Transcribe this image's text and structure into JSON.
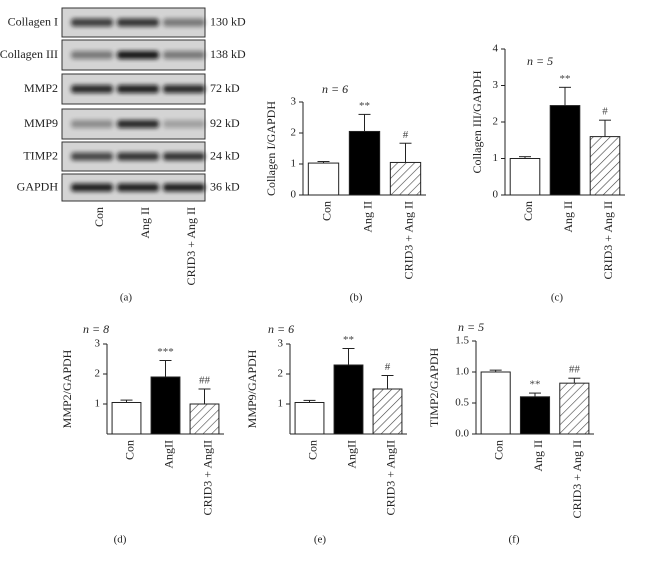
{
  "blot": {
    "panel": "(a)",
    "rows": [
      {
        "label": "Collagen I",
        "size": "130 kD"
      },
      {
        "label": "Collagen III",
        "size": "138 kD"
      },
      {
        "label": "MMP2",
        "size": "72 kD"
      },
      {
        "label": "MMP9",
        "size": "92 kD"
      },
      {
        "label": "TIMP2",
        "size": "24 kD"
      },
      {
        "label": "GAPDH",
        "size": "36 kD"
      }
    ],
    "lanes": [
      "Con",
      "Ang II",
      "CRID3 + Ang II"
    ]
  },
  "chart_data": [
    {
      "type": "bar",
      "panel": "(b)",
      "title": "n = 6",
      "y_label": "Collagen I/GAPDH",
      "categories": [
        "Con",
        "Ang II",
        "CRID3 + Ang II"
      ],
      "values": [
        1.03,
        2.05,
        1.05
      ],
      "errors": [
        0.05,
        0.55,
        0.62
      ],
      "annotations": [
        null,
        "**",
        "#"
      ],
      "colors": [
        "#ffffff",
        "#000000",
        "#ffffff"
      ],
      "hatch": [
        false,
        false,
        true
      ],
      "ylim": [
        0,
        3
      ],
      "yticks": [
        0,
        1,
        2,
        3
      ]
    },
    {
      "type": "bar",
      "panel": "(c)",
      "title": "n = 5",
      "y_label": "Collagen III/GAPDH",
      "categories": [
        "Con",
        "Ang II",
        "CRID3 + Ang II"
      ],
      "values": [
        1.0,
        2.45,
        1.6
      ],
      "errors": [
        0.05,
        0.5,
        0.45
      ],
      "annotations": [
        null,
        "**",
        "#"
      ],
      "colors": [
        "#ffffff",
        "#000000",
        "#ffffff"
      ],
      "hatch": [
        false,
        false,
        true
      ],
      "ylim": [
        0,
        4
      ],
      "yticks": [
        0,
        1,
        2,
        3,
        4
      ]
    },
    {
      "type": "bar",
      "panel": "(d)",
      "title": "n = 8",
      "y_label": "MMP2/GAPDH",
      "categories": [
        "Con",
        "AngII",
        "CRID3 + AngII"
      ],
      "values": [
        1.05,
        1.9,
        1.0
      ],
      "errors": [
        0.08,
        0.55,
        0.5
      ],
      "annotations": [
        null,
        "***",
        "##"
      ],
      "colors": [
        "#ffffff",
        "#000000",
        "#ffffff"
      ],
      "hatch": [
        false,
        false,
        true
      ],
      "ylim": [
        0,
        3
      ],
      "yticks": [
        1,
        2,
        3
      ]
    },
    {
      "type": "bar",
      "panel": "(e)",
      "title": "n = 6",
      "y_label": "MMP9/GAPDH",
      "categories": [
        "Con",
        "AngII",
        "CRID3 + AngII"
      ],
      "values": [
        1.05,
        2.3,
        1.5
      ],
      "errors": [
        0.07,
        0.55,
        0.45
      ],
      "annotations": [
        null,
        "**",
        "#"
      ],
      "colors": [
        "#ffffff",
        "#000000",
        "#ffffff"
      ],
      "hatch": [
        false,
        false,
        true
      ],
      "ylim": [
        0,
        3
      ],
      "yticks": [
        1,
        2,
        3
      ]
    },
    {
      "type": "bar",
      "panel": "(f)",
      "title": "n = 5",
      "y_label": "TIMP2/GAPDH",
      "categories": [
        "Con",
        "Ang II",
        "CRID3 + Ang II"
      ],
      "values": [
        1.0,
        0.6,
        0.82
      ],
      "errors": [
        0.03,
        0.06,
        0.08
      ],
      "annotations": [
        null,
        "**",
        "##"
      ],
      "colors": [
        "#ffffff",
        "#000000",
        "#ffffff"
      ],
      "hatch": [
        false,
        false,
        true
      ],
      "ylim": [
        0,
        1.5
      ],
      "yticks": [
        {
          "value": 0,
          "label": "0.0"
        },
        {
          "value": 0.5,
          "label": "0.5"
        },
        {
          "value": 1,
          "label": "1.0"
        },
        {
          "value": 1.5,
          "label": "1.5"
        }
      ]
    }
  ]
}
